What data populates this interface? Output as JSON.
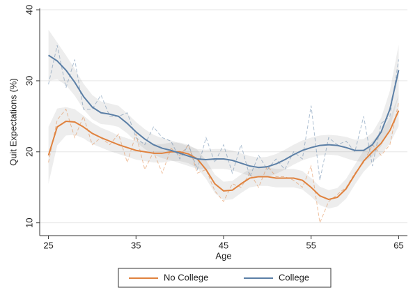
{
  "chart_data": {
    "type": "line",
    "xlabel": "Age",
    "ylabel": "Quit Expectations (%)",
    "x": [
      25,
      26,
      27,
      28,
      29,
      30,
      31,
      32,
      33,
      34,
      35,
      36,
      37,
      38,
      39,
      40,
      41,
      42,
      43,
      44,
      45,
      46,
      47,
      48,
      49,
      50,
      51,
      52,
      53,
      54,
      55,
      56,
      57,
      58,
      59,
      60,
      61,
      62,
      63,
      64,
      65
    ],
    "series": [
      {
        "name": "No College",
        "color": "#e0823e",
        "values": [
          19.5,
          23.5,
          24.3,
          24.2,
          23.5,
          22.6,
          22,
          21.5,
          21,
          20.6,
          20.2,
          20,
          19.8,
          19.8,
          20,
          20,
          19.7,
          19,
          17.5,
          15.5,
          14.5,
          14.6,
          15.5,
          16.3,
          16.5,
          16.5,
          16.3,
          16.3,
          16.3,
          16,
          15,
          13.8,
          13.3,
          13.6,
          14.8,
          16.8,
          18.7,
          20,
          21.2,
          23,
          25.8
        ],
        "raw": [
          18.5,
          24.5,
          26,
          22,
          25,
          21,
          22,
          21,
          22.5,
          18.5,
          22.5,
          17.5,
          20,
          17,
          20.5,
          19.5,
          21,
          17,
          17.5,
          14.5,
          13,
          15.5,
          15,
          17,
          15,
          18,
          16.5,
          16.5,
          16,
          15,
          18,
          10,
          13,
          14,
          15,
          17,
          18.5,
          21,
          19.5,
          21,
          27
        ],
        "ci": [
          4,
          2.6,
          2,
          1.8,
          1.6,
          1.5,
          1.4,
          1.4,
          1.3,
          1.3,
          1.3,
          1.3,
          1.3,
          1.3,
          1.3,
          1.3,
          1.3,
          1.3,
          1.3,
          1.3,
          1.3,
          1.3,
          1.3,
          1.3,
          1.3,
          1.3,
          1.3,
          1.3,
          1.3,
          1.3,
          1.3,
          1.3,
          1.3,
          1.3,
          1.4,
          1.4,
          1.5,
          1.5,
          1.6,
          1.8,
          2.2
        ]
      },
      {
        "name": "College",
        "color": "#5b7fa6",
        "values": [
          33.6,
          32.8,
          31.5,
          29.8,
          27.8,
          26.3,
          25.5,
          25.3,
          25,
          24,
          22.8,
          21.8,
          21,
          20.5,
          20.2,
          19.8,
          19.4,
          19,
          18.9,
          19,
          19,
          18.8,
          18.4,
          18,
          17.8,
          17.9,
          18.3,
          18.9,
          19.6,
          20.2,
          20.6,
          20.9,
          21,
          20.9,
          20.6,
          20.2,
          20.2,
          21,
          22.8,
          26,
          31.5
        ],
        "raw": [
          29.5,
          35,
          29,
          33,
          26,
          26,
          28,
          25,
          25,
          25.5,
          22,
          21,
          23.5,
          22,
          21.5,
          19,
          21,
          17.5,
          22,
          18.5,
          21,
          17,
          21,
          16.5,
          19.5,
          17.5,
          19,
          17.5,
          20,
          19,
          26.5,
          16,
          22,
          21,
          21.5,
          20,
          25,
          18,
          24,
          25,
          33
        ],
        "ci": [
          3.6,
          2.6,
          2.1,
          1.9,
          1.8,
          1.7,
          1.6,
          1.5,
          1.5,
          1.4,
          1.4,
          1.4,
          1.4,
          1.4,
          1.4,
          1.4,
          1.4,
          1.4,
          1.4,
          1.4,
          1.4,
          1.4,
          1.4,
          1.4,
          1.4,
          1.4,
          1.4,
          1.4,
          1.4,
          1.4,
          1.4,
          1.4,
          1.4,
          1.4,
          1.5,
          1.5,
          1.6,
          1.7,
          2,
          2.6,
          3.6
        ]
      }
    ],
    "xlim": [
      24,
      66
    ],
    "ylim": [
      8.2,
      40.2
    ],
    "xticks": [
      25,
      35,
      45,
      55,
      65
    ],
    "yticks": [
      10,
      20,
      30,
      40
    ],
    "grid": true,
    "legend": "bottom"
  }
}
